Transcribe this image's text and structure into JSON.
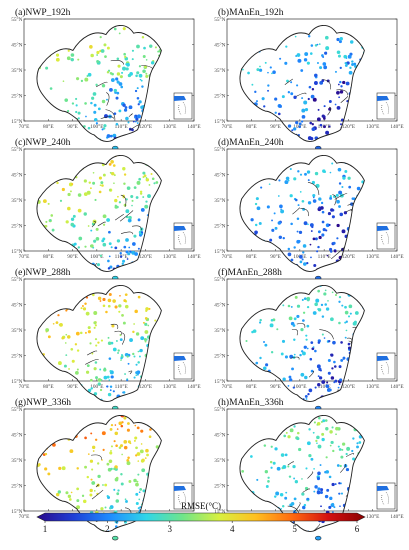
{
  "panels": [
    {
      "label": "(a)NWP_192h",
      "rmse_level": 0.5
    },
    {
      "label": "(b)MAnEn_192h",
      "rmse_level": 0.28
    },
    {
      "label": "(c)NWP_240h",
      "rmse_level": 0.55
    },
    {
      "label": "(d)MAnEn_240h",
      "rmse_level": 0.3
    },
    {
      "label": "(e)NWP_288h",
      "rmse_level": 0.62
    },
    {
      "label": "(f)MAnEn_288h",
      "rmse_level": 0.36
    },
    {
      "label": "(g)NWP_336h",
      "rmse_level": 0.68
    },
    {
      "label": "(h)MAnEn_336h",
      "rmse_level": 0.42
    }
  ],
  "lat_ticks": [
    "55°N",
    "45°N",
    "35°N",
    "25°N",
    "15°N"
  ],
  "lon_ticks": [
    "70°E",
    "80°E",
    "90°E",
    "100°E",
    "110°E",
    "120°E",
    "130°E",
    "140°E"
  ],
  "colorbar": {
    "title": "RMSE(°C)",
    "ticks": [
      "1",
      "2",
      "3",
      "4",
      "5",
      "6"
    ],
    "min": 1,
    "max": 6,
    "colors": [
      "#2a0a8c",
      "#1f3fd6",
      "#1f8cff",
      "#2fd6e8",
      "#6fe58a",
      "#d8f040",
      "#ffc020",
      "#ff6a10",
      "#d41010",
      "#8a0000"
    ]
  }
}
